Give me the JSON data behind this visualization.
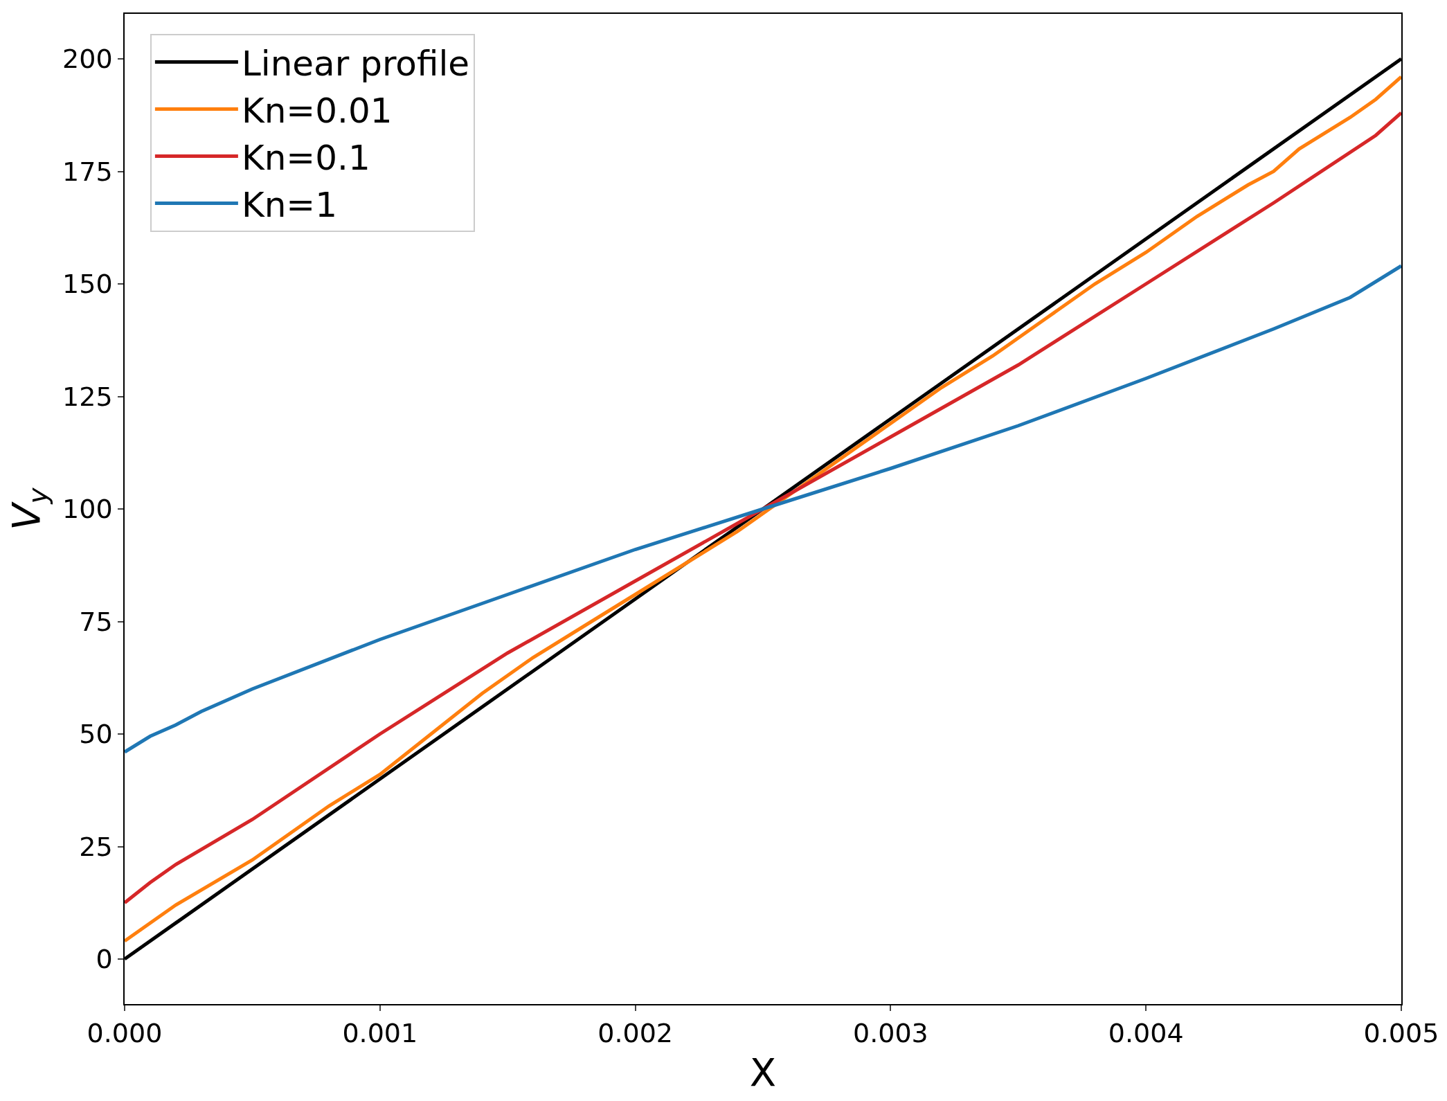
{
  "chart_data": {
    "type": "line",
    "xlabel": "X",
    "ylabel": "V$_{y}$",
    "xlim": [
      0,
      0.005
    ],
    "xticks": [
      {
        "value": 0,
        "label": "0.000"
      },
      0.001,
      0.002,
      0.003,
      0.004,
      0.005
    ],
    "ylim": [
      -10,
      210
    ],
    "yticks": [
      0,
      25,
      50,
      75,
      100,
      125,
      150,
      175,
      200
    ],
    "legend": "top left",
    "marker": "none",
    "line_style": "solid",
    "series": [
      {
        "name": "Linear profile",
        "color": "#000000",
        "x": [
          0,
          0.005
        ],
        "values": [
          0,
          200
        ]
      },
      {
        "name": "Kn=0.01",
        "color": "#ff7f0e",
        "x": [
          0,
          0.0001,
          0.0002,
          0.0005,
          0.0006,
          0.0008,
          0.001,
          0.0012,
          0.0014,
          0.0016,
          0.0018,
          0.002,
          0.0022,
          0.0024,
          0.0026,
          0.0028,
          0.003,
          0.0032,
          0.0034,
          0.0036,
          0.0038,
          0.004,
          0.0042,
          0.0044,
          0.0045,
          0.0046,
          0.0048,
          0.0049,
          0.005
        ],
        "values": [
          4,
          8,
          12,
          22,
          26,
          34,
          41,
          50,
          59,
          67,
          74,
          81,
          88,
          95,
          103,
          111,
          119,
          127,
          134,
          142,
          150,
          157,
          165,
          172,
          175,
          180,
          187,
          191,
          196
        ]
      },
      {
        "name": "Kn=0.1",
        "color": "#d62728",
        "x": [
          0,
          0.0001,
          0.0002,
          0.0005,
          0.001,
          0.0015,
          0.002,
          0.0025,
          0.003,
          0.0035,
          0.004,
          0.0045,
          0.0049,
          0.005
        ],
        "values": [
          12.5,
          17,
          21,
          31,
          50,
          68,
          84,
          100,
          116,
          132,
          150,
          168,
          183,
          188
        ]
      },
      {
        "name": "Kn=1",
        "color": "#1f77b4",
        "x": [
          0,
          0.0001,
          0.0002,
          0.0003,
          0.0005,
          0.001,
          0.0015,
          0.002,
          0.0025,
          0.003,
          0.0035,
          0.004,
          0.0045,
          0.0048,
          0.005
        ],
        "values": [
          46,
          49.5,
          52,
          55,
          60,
          71,
          81,
          91,
          100,
          109,
          118.5,
          129,
          140,
          147,
          154
        ]
      }
    ]
  }
}
